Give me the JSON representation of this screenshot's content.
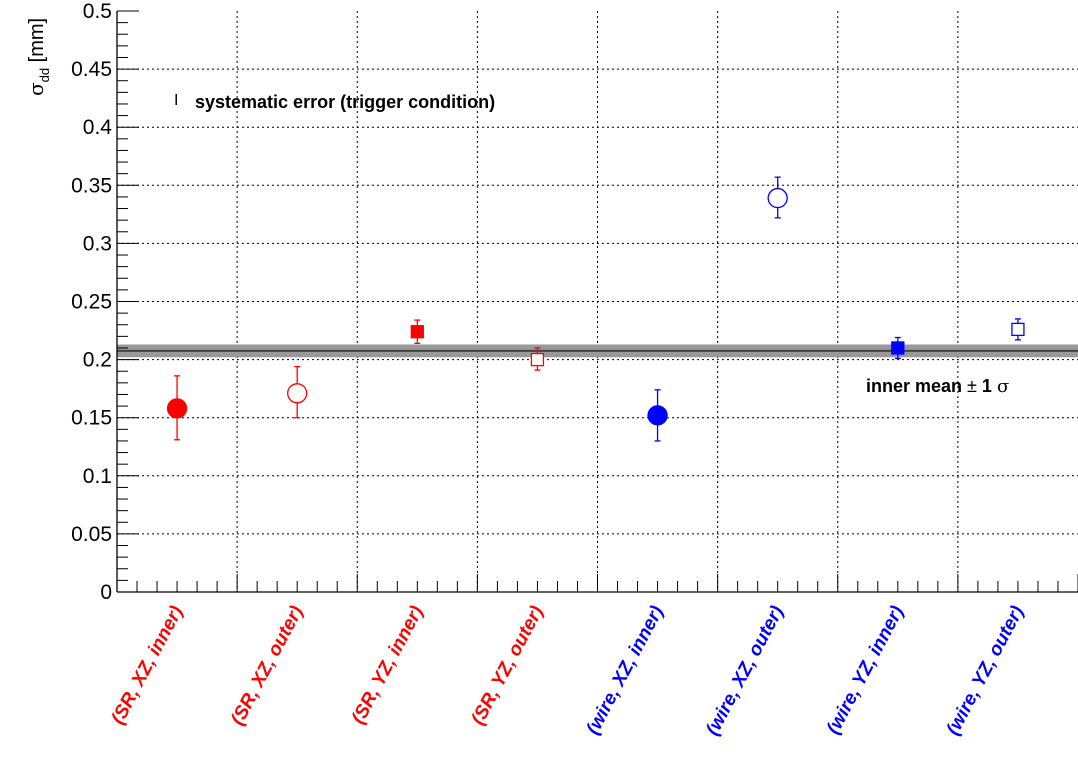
{
  "chart_data": {
    "type": "scatter",
    "ylabel": {
      "symbol": "σ",
      "subscript": "dd",
      "unit": " [mm]"
    },
    "xlabel": "",
    "ylim": [
      0,
      0.5
    ],
    "y_ticks": [
      "0",
      "0.05",
      "0.1",
      "0.15",
      "0.2",
      "0.25",
      "0.3",
      "0.35",
      "0.4",
      "0.45",
      "0.5"
    ],
    "grid": true,
    "categories": [
      "(SR, XZ, inner)",
      "(SR, XZ, outer)",
      "(SR, YZ, inner)",
      "(SR, YZ, outer)",
      "(wire, XZ, inner)",
      "(wire, XZ, outer)",
      "(wire, YZ, inner)",
      "(wire, YZ, outer)"
    ],
    "category_colors": [
      "#ff0000",
      "#ff0000",
      "#ff0000",
      "#ff0000",
      "#0000ff",
      "#0000ff",
      "#0000ff",
      "#0000ff"
    ],
    "points": [
      {
        "value": 0.158,
        "err_low": 0.027,
        "err_high": 0.028,
        "marker": "circle",
        "filled": true,
        "color": "#ff0000"
      },
      {
        "value": 0.171,
        "err_low": 0.021,
        "err_high": 0.023,
        "marker": "circle",
        "filled": false,
        "color": "#ff0000"
      },
      {
        "value": 0.224,
        "err_low": 0.01,
        "err_high": 0.01,
        "marker": "square",
        "filled": true,
        "color": "#ff0000"
      },
      {
        "value": 0.2,
        "err_low": 0.009,
        "err_high": 0.01,
        "marker": "square",
        "filled": false,
        "color": "#ff0000"
      },
      {
        "value": 0.152,
        "err_low": 0.022,
        "err_high": 0.022,
        "marker": "circle",
        "filled": true,
        "color": "#0000ff"
      },
      {
        "value": 0.339,
        "err_low": 0.017,
        "err_high": 0.018,
        "marker": "circle",
        "filled": false,
        "color": "#0000ff"
      },
      {
        "value": 0.21,
        "err_low": 0.009,
        "err_high": 0.009,
        "marker": "square",
        "filled": true,
        "color": "#0000ff"
      },
      {
        "value": 0.226,
        "err_low": 0.009,
        "err_high": 0.009,
        "marker": "square",
        "filled": false,
        "color": "#0000ff"
      }
    ],
    "band": {
      "mean": 0.2075,
      "sigma": 0.0055,
      "label_prefix": "inner mean ",
      "label_pm": "±",
      "label_one": " 1 ",
      "label_sigma": "σ",
      "fill": "#999999",
      "line": "#444444"
    },
    "annotation": {
      "marker": "I",
      "text": "systematic error (trigger condition)"
    }
  }
}
